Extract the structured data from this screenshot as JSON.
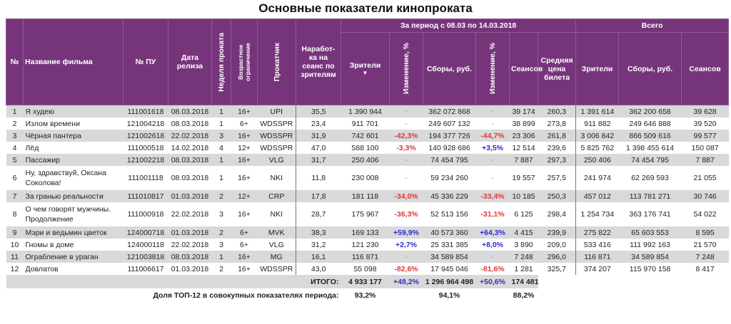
{
  "title": "Основные показатели кинопроката",
  "colors": {
    "header": "#76357a",
    "negative": "#e03a3a",
    "positive": "#2d2dd0",
    "stripe": "#d9d9d9"
  },
  "headers": {
    "num": "№",
    "name": "Название фильма",
    "pu": "№ ПУ",
    "date": "Дата релиза",
    "week": "Неделя проката",
    "age": "Возрастное ограничение",
    "distributor": "Прокатчик",
    "per_session": "Наработ-ка на сеанс по зрителям",
    "period": "За период с 08.03 по 14.03.2018",
    "viewers": "Зрители",
    "sort_icon": "▼",
    "change": "Изменение, %",
    "gross": "Сборы, руб.",
    "change2": "Изменение, %",
    "sessions": "Сеансов",
    "avg_price": "Средняя цена билета",
    "total": "Всего",
    "t_viewers": "Зрители",
    "t_gross": "Сборы, руб.",
    "t_sessions": "Сеансов"
  },
  "rows": [
    [
      "1",
      "Я худею",
      "111001618",
      "08.03.2018",
      "1",
      "16+",
      "UPI",
      "35,5",
      "1 390 944",
      "-",
      "362 072 868",
      "-",
      "39 174",
      "260,3",
      "1 391 614",
      "362 200 658",
      "39 628"
    ],
    [
      "2",
      "Излом времени",
      "121004218",
      "08.03.2018",
      "1",
      "6+",
      "WDSSPR",
      "23,4",
      "911 701",
      "-",
      "249 607 132",
      "-",
      "38 899",
      "273,8",
      "911 882",
      "249 646 888",
      "39 520"
    ],
    [
      "3",
      "Чёрная пантера",
      "121002618",
      "22.02.2018",
      "3",
      "16+",
      "WDSSPR",
      "31,9",
      "742 601",
      "-42,3%",
      "194 377 726",
      "-44,7%",
      "23 306",
      "261,8",
      "3 006 842",
      "866 509 616",
      "99 577"
    ],
    [
      "4",
      "Лёд",
      "111000518",
      "14.02.2018",
      "4",
      "12+",
      "WDSSPR",
      "47,0",
      "588 100",
      "-3,3%",
      "140 928 686",
      "+3,5%",
      "12 514",
      "239,6",
      "5 825 762",
      "1 398 455 614",
      "150 087"
    ],
    [
      "5",
      "Пассажир",
      "121002218",
      "08.03.2018",
      "1",
      "16+",
      "VLG",
      "31,7",
      "250 406",
      "-",
      "74 454 795",
      "-",
      "7 887",
      "297,3",
      "250 406",
      "74 454 795",
      "7 887"
    ],
    [
      "6",
      "Ну, здравствуй, Оксана Соколова!",
      "111001118",
      "08.03.2018",
      "1",
      "16+",
      "NKI",
      "11,8",
      "230 008",
      "-",
      "59 234 260",
      "-",
      "19 557",
      "257,5",
      "241 974",
      "62 269 593",
      "21 055"
    ],
    [
      "7",
      "За гранью реальности",
      "111010817",
      "01.03.2018",
      "2",
      "12+",
      "CRP",
      "17,8",
      "181 118",
      "-34,0%",
      "45 336 229",
      "-33,4%",
      "10 185",
      "250,3",
      "457 012",
      "113 781 271",
      "30 746"
    ],
    [
      "8",
      "О чем говорят мужчины. Продолжение",
      "111000918",
      "22.02.2018",
      "3",
      "16+",
      "NKI",
      "28,7",
      "175 967",
      "-36,3%",
      "52 513 156",
      "-31,1%",
      "6 125",
      "298,4",
      "1 254 734",
      "363 176 741",
      "54 022"
    ],
    [
      "9",
      "Мэри и ведьмин цветок",
      "124000718",
      "01.03.2018",
      "2",
      "6+",
      "MVK",
      "38,3",
      "169 133",
      "+59,9%",
      "40 573 360",
      "+64,3%",
      "4 415",
      "239,9",
      "275 822",
      "65 603 553",
      "8 595"
    ],
    [
      "10",
      "Гномы в доме",
      "124000118",
      "22.02.2018",
      "3",
      "6+",
      "VLG",
      "31,2",
      "121 230",
      "+2,7%",
      "25 331 385",
      "+8,0%",
      "3 890",
      "209,0",
      "533 416",
      "111 992 163",
      "21 570"
    ],
    [
      "11",
      "Ограбление в ураган",
      "121003818",
      "08.03.2018",
      "1",
      "16+",
      "MG",
      "16,1",
      "116 871",
      "-",
      "34 589 854",
      "-",
      "7 248",
      "296,0",
      "116 871",
      "34 589 854",
      "7 248"
    ],
    [
      "12",
      "Довлатов",
      "111006617",
      "01.03.2018",
      "2",
      "16+",
      "WDSSPR",
      "43,0",
      "55 098",
      "-82,6%",
      "17 945 046",
      "-81,6%",
      "1 281",
      "325,7",
      "374 207",
      "115 970 158",
      "8 417"
    ]
  ],
  "total": {
    "label": "ИТОГО:",
    "viewers": "4 933 177",
    "change": "+48,2%",
    "gross": "1 296 964 498",
    "change2": "+50,6%",
    "sessions": "174 481"
  },
  "share": {
    "label": "Доля ТОП-12 в совокупных показателях периода:",
    "viewers": "93,2%",
    "gross": "94,1%",
    "sessions": "88,2%"
  }
}
